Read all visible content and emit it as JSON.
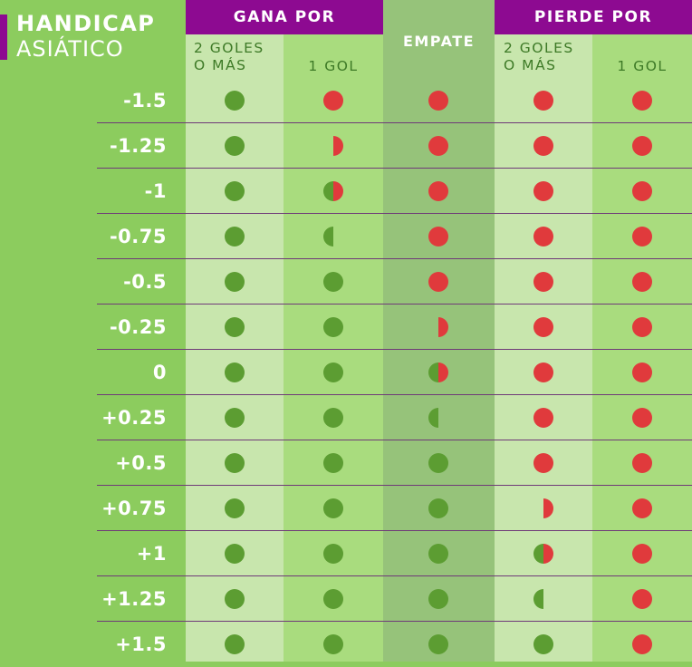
{
  "title": {
    "line1": "HANDICAP",
    "line2": "ASIÁTICO"
  },
  "groups": {
    "win": "GANA POR",
    "draw": "EMPATE",
    "lose": "PIERDE POR"
  },
  "subheaders": {
    "win_two": "2 GOLES\nO MÁS",
    "win_one": "1 GOL",
    "lose_two": "2 GOLES\nO MÁS",
    "lose_one": "1 GOL"
  },
  "legend": {
    "win": "full-green-dot",
    "lose": "full-red-dot",
    "half_win": "half-green-dot",
    "half_lose": "half-red-dot",
    "push": "split-green-red-dot"
  },
  "colors": {
    "green": "#5c9d32",
    "red": "#e03a3c",
    "purple": "#8d0a91"
  },
  "rows": [
    {
      "handicap": "-1.5",
      "outcomes": [
        "W",
        "L",
        "L",
        "L",
        "L"
      ]
    },
    {
      "handicap": "-1.25",
      "outcomes": [
        "W",
        "HL",
        "L",
        "L",
        "L"
      ]
    },
    {
      "handicap": "-1",
      "outcomes": [
        "W",
        "P",
        "L",
        "L",
        "L"
      ]
    },
    {
      "handicap": "-0.75",
      "outcomes": [
        "W",
        "HW",
        "L",
        "L",
        "L"
      ]
    },
    {
      "handicap": "-0.5",
      "outcomes": [
        "W",
        "W",
        "L",
        "L",
        "L"
      ]
    },
    {
      "handicap": "-0.25",
      "outcomes": [
        "W",
        "W",
        "HL",
        "L",
        "L"
      ]
    },
    {
      "handicap": "0",
      "outcomes": [
        "W",
        "W",
        "P",
        "L",
        "L"
      ]
    },
    {
      "handicap": "+0.25",
      "outcomes": [
        "W",
        "W",
        "HW",
        "L",
        "L"
      ]
    },
    {
      "handicap": "+0.5",
      "outcomes": [
        "W",
        "W",
        "W",
        "L",
        "L"
      ]
    },
    {
      "handicap": "+0.75",
      "outcomes": [
        "W",
        "W",
        "W",
        "HL",
        "L"
      ]
    },
    {
      "handicap": "+1",
      "outcomes": [
        "W",
        "W",
        "W",
        "P",
        "L"
      ]
    },
    {
      "handicap": "+1.25",
      "outcomes": [
        "W",
        "W",
        "W",
        "HW",
        "L"
      ]
    },
    {
      "handicap": "+1.5",
      "outcomes": [
        "W",
        "W",
        "W",
        "W",
        "L"
      ]
    }
  ]
}
